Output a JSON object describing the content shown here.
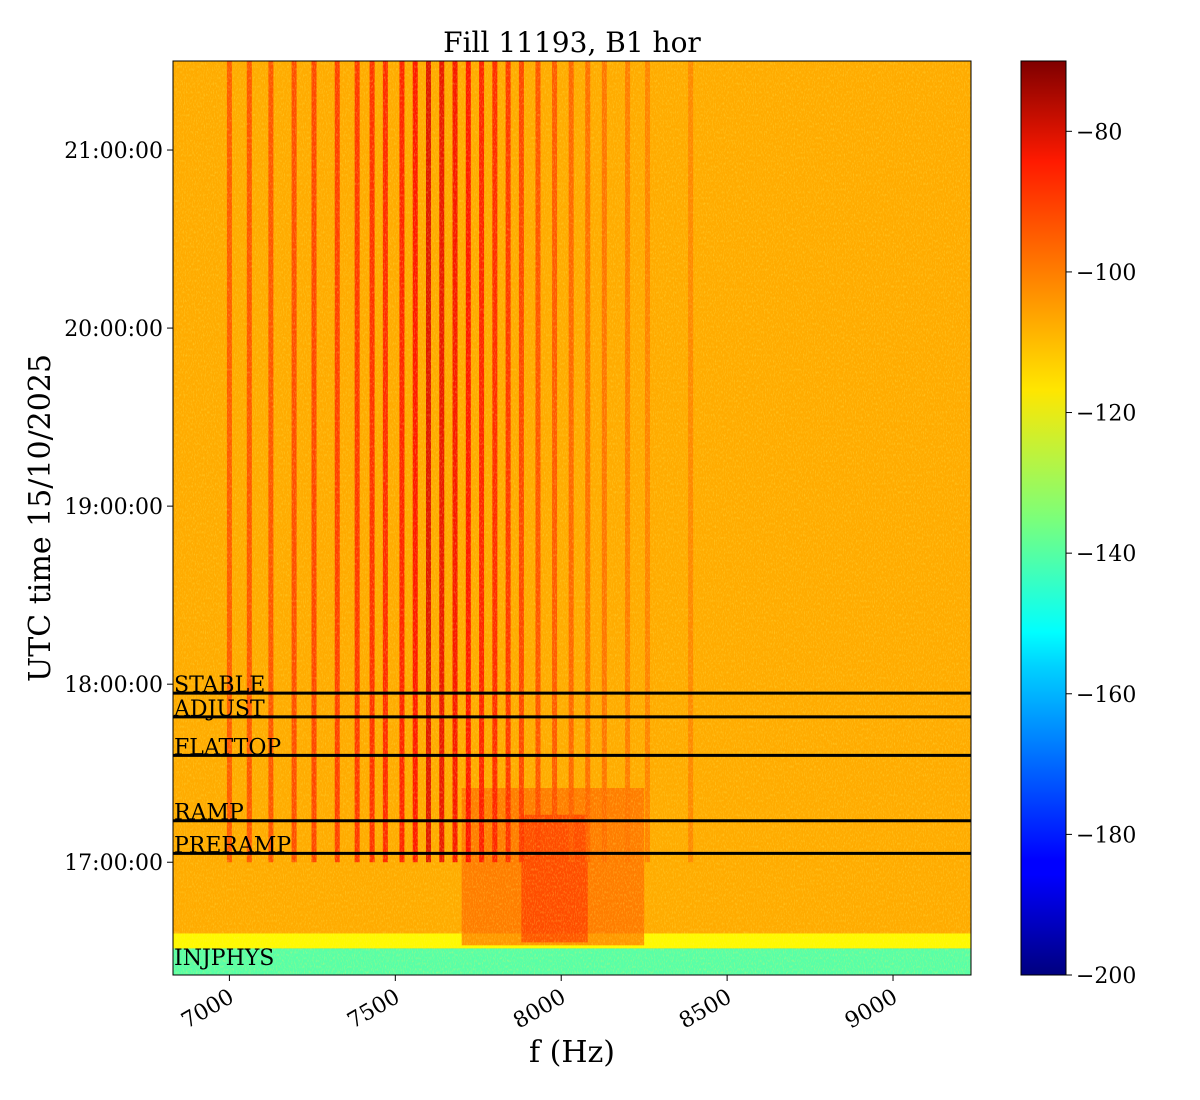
{
  "chart_data": {
    "type": "heatmap",
    "title": "Fill 11193, B1 hor",
    "xlabel": "f (Hz)",
    "ylabel": "UTC time 15/10/2025",
    "xlim": [
      6830,
      9235
    ],
    "ylim": [
      "16:22:00",
      "21:30:00"
    ],
    "x_ticks": [
      7000,
      7500,
      8000,
      8500,
      9000
    ],
    "x_tick_labels": [
      "7000",
      "7500",
      "8000",
      "8500",
      "9000"
    ],
    "y_ticks": [
      "17:00:00",
      "18:00:00",
      "19:00:00",
      "20:00:00",
      "21:00:00"
    ],
    "y_tick_labels": [
      "17:00:00",
      "18:00:00",
      "19:00:00",
      "20:00:00",
      "21:00:00"
    ],
    "colorbar": {
      "range": [
        -200,
        -70
      ],
      "ticks": [
        -200,
        -180,
        -160,
        -140,
        -120,
        -100,
        -80
      ],
      "tick_labels": [
        "−200",
        "−180",
        "−160",
        "−140",
        "−120",
        "−100",
        "−80"
      ],
      "colormap": "jet"
    },
    "background_level": -108,
    "injection_level": -140,
    "phases": [
      {
        "name": "STABLE",
        "time": "17:57:00"
      },
      {
        "name": "ADJUST",
        "time": "17:49:00"
      },
      {
        "name": "FLATTOP",
        "time": "17:36:00"
      },
      {
        "name": "RAMP",
        "time": "17:14:00"
      },
      {
        "name": "PRERAMP",
        "time": "17:03:00"
      },
      {
        "name": "INJPHYS",
        "time": "16:25:00"
      }
    ],
    "lines": [
      {
        "f": 7000,
        "level": -96
      },
      {
        "f": 7060,
        "level": -95
      },
      {
        "f": 7125,
        "level": -95
      },
      {
        "f": 7195,
        "level": -94
      },
      {
        "f": 7255,
        "level": -93
      },
      {
        "f": 7325,
        "level": -92
      },
      {
        "f": 7385,
        "level": -91
      },
      {
        "f": 7430,
        "level": -90
      },
      {
        "f": 7470,
        "level": -89
      },
      {
        "f": 7520,
        "level": -88
      },
      {
        "f": 7560,
        "level": -86
      },
      {
        "f": 7600,
        "level": -76
      },
      {
        "f": 7640,
        "level": -80
      },
      {
        "f": 7680,
        "level": -84
      },
      {
        "f": 7720,
        "level": -86
      },
      {
        "f": 7760,
        "level": -88
      },
      {
        "f": 7800,
        "level": -89
      },
      {
        "f": 7840,
        "level": -91
      },
      {
        "f": 7880,
        "level": -93
      },
      {
        "f": 7930,
        "level": -95
      },
      {
        "f": 7980,
        "level": -96
      },
      {
        "f": 8030,
        "level": -98
      },
      {
        "f": 8080,
        "level": -99
      },
      {
        "f": 8130,
        "level": -100
      },
      {
        "f": 8200,
        "level": -101
      },
      {
        "f": 8260,
        "level": -102
      },
      {
        "f": 8390,
        "level": -103
      }
    ]
  }
}
